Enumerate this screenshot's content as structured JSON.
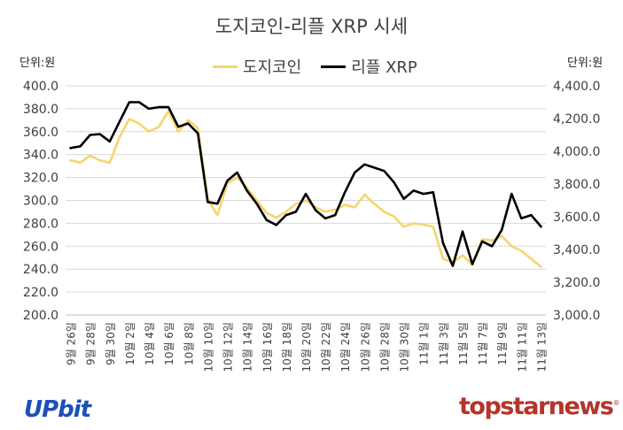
{
  "chart_data": {
    "type": "line",
    "title": "도지코인-리플 XRP 시세",
    "unit_left": "단위:원",
    "unit_right": "단위:원",
    "legend_position": "top",
    "x": [
      "9월 26일",
      "9월 27일",
      "9월 28일",
      "9월 29일",
      "9월 30일",
      "10월 1일",
      "10월 2일",
      "10월 3일",
      "10월 4일",
      "10월 5일",
      "10월 6일",
      "10월 7일",
      "10월 8일",
      "10월 9일",
      "10월 10일",
      "10월 11일",
      "10월 12일",
      "10월 13일",
      "10월 14일",
      "10월 15일",
      "10월 16일",
      "10월 17일",
      "10월 18일",
      "10월 19일",
      "10월 20일",
      "10월 21일",
      "10월 22일",
      "10월 23일",
      "10월 24일",
      "10월 25일",
      "10월 26일",
      "10월 27일",
      "10월 28일",
      "10월 29일",
      "10월 30일",
      "10월 31일",
      "11월 1일",
      "11월 2일",
      "11월 3일",
      "11월 4일",
      "11월 5일",
      "11월 6일",
      "11월 7일",
      "11월 8일",
      "11월 9일",
      "11월 10일",
      "11월 11일",
      "11월 12일",
      "11월 13일"
    ],
    "tick_labels": [
      "9월 26일",
      "9월 28일",
      "9월 30일",
      "10월 2일",
      "10월 4일",
      "10월 6일",
      "10월 8일",
      "10월 10일",
      "10월 12일",
      "10월 14일",
      "10월 16일",
      "10월 18일",
      "10월 20일",
      "10월 22일",
      "10월 24일",
      "10월 26일",
      "10월 28일",
      "10월 30일",
      "11월 1일",
      "11월 3일",
      "11월 5일",
      "11월 7일",
      "11월 9일",
      "11월 11일",
      "11월 13일"
    ],
    "y_left": {
      "range": [
        200,
        400
      ],
      "ticks": [
        "200.0",
        "220.0",
        "240.0",
        "260.0",
        "280.0",
        "300.0",
        "320.0",
        "340.0",
        "360.0",
        "380.0",
        "400.0"
      ]
    },
    "y_right": {
      "range": [
        3000,
        4400
      ],
      "ticks": [
        "3,000.0",
        "3,200.0",
        "3,400.0",
        "3,600.0",
        "3,800.0",
        "4,000.0",
        "4,200.0",
        "4,400.0"
      ]
    },
    "series": [
      {
        "name": "도지코인",
        "axis": "left",
        "color": "#f5d56e",
        "values": [
          335,
          333,
          339,
          335,
          333,
          355,
          371,
          367,
          360,
          364,
          378,
          360,
          370,
          363,
          301,
          287,
          315,
          320,
          311,
          300,
          289,
          285,
          290,
          297,
          300,
          294,
          290,
          292,
          296,
          294,
          305,
          297,
          290,
          286,
          277,
          280,
          279,
          277,
          249,
          246,
          252,
          244,
          266,
          265,
          269,
          260,
          256,
          249,
          242
        ]
      },
      {
        "name": "리플 XRP",
        "axis": "right",
        "color": "#000000",
        "values": [
          4020,
          4030,
          4100,
          4105,
          4060,
          4180,
          4300,
          4300,
          4260,
          4270,
          4270,
          4150,
          4170,
          4110,
          3690,
          3680,
          3820,
          3870,
          3760,
          3680,
          3580,
          3550,
          3610,
          3630,
          3740,
          3640,
          3590,
          3610,
          3750,
          3870,
          3920,
          3900,
          3880,
          3810,
          3710,
          3760,
          3740,
          3750,
          3440,
          3300,
          3510,
          3310,
          3450,
          3420,
          3520,
          3740,
          3590,
          3610,
          3540
        ]
      }
    ]
  },
  "brand": {
    "upbit": "UPbit",
    "topstar": "topstarnews",
    "topstar_mark": "®"
  }
}
